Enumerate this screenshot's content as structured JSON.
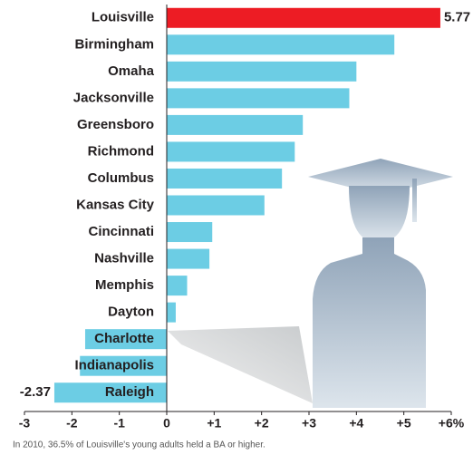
{
  "chart_data": {
    "type": "bar",
    "orientation": "horizontal",
    "categories": [
      "Louisville",
      "Birmingham",
      "Omaha",
      "Jacksonville",
      "Greensboro",
      "Richmond",
      "Columbus",
      "Kansas City",
      "Cincinnati",
      "Nashville",
      "Memphis",
      "Dayton",
      "Charlotte",
      "Indianapolis",
      "Raleigh"
    ],
    "values": [
      5.77,
      4.8,
      4.0,
      3.85,
      2.87,
      2.7,
      2.43,
      2.06,
      0.96,
      0.9,
      0.43,
      0.19,
      -1.72,
      -1.83,
      -2.37
    ],
    "value_labels": [
      "5.77",
      null,
      null,
      null,
      null,
      null,
      null,
      null,
      null,
      null,
      null,
      null,
      null,
      null,
      "-2.37"
    ],
    "colors": [
      "#ed1c24",
      "#6ccde4",
      "#6ccde4",
      "#6ccde4",
      "#6ccde4",
      "#6ccde4",
      "#6ccde4",
      "#6ccde4",
      "#6ccde4",
      "#6ccde4",
      "#6ccde4",
      "#6ccde4",
      "#6ccde4",
      "#6ccde4",
      "#6ccde4"
    ],
    "xlim": [
      -3,
      6
    ],
    "xticks": [
      -3,
      -2,
      -1,
      0,
      {
        "value": 1,
        "label": "+1"
      },
      {
        "value": 2,
        "label": "+2"
      },
      {
        "value": 3,
        "label": "+3"
      },
      {
        "value": 4,
        "label": "+4"
      },
      {
        "value": 5,
        "label": "+5"
      },
      {
        "value": 6,
        "label": "+6%"
      }
    ],
    "footnote": "In 2010, 36.5% of Louisville's young adults held a BA or higher."
  }
}
